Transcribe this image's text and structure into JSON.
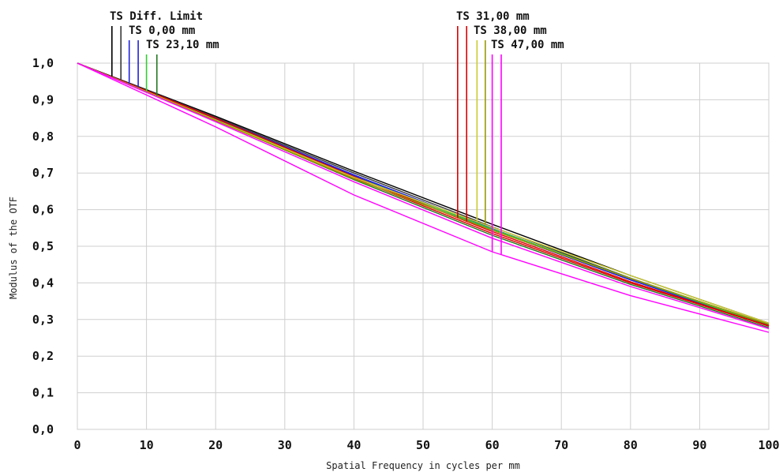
{
  "chart_data": {
    "type": "line",
    "xlabel": "Spatial Frequency in cycles per mm",
    "ylabel": "Modulus of the OTF",
    "xlim": [
      0,
      100
    ],
    "ylim": [
      0,
      1
    ],
    "x_ticks": [
      "0",
      "10",
      "20",
      "30",
      "40",
      "50",
      "60",
      "70",
      "80",
      "90",
      "100"
    ],
    "y_ticks": [
      "0,0",
      "0,1",
      "0,2",
      "0,3",
      "0,4",
      "0,5",
      "0,6",
      "0,7",
      "0,8",
      "0,9",
      "1,0"
    ],
    "grid": true,
    "legend_labels": [
      "TS Diff. Limit",
      "TS 0,00 mm",
      "TS 23,10 mm",
      "TS 31,00 mm",
      "TS 38,00 mm",
      "TS 47,00 mm"
    ],
    "series": [
      {
        "name": "TS Diff. Limit",
        "color": "#000000",
        "marker_x": [
          5.0,
          6.3
        ],
        "x": [
          0,
          20,
          40,
          60,
          80,
          100
        ],
        "y": [
          1.0,
          0.855,
          0.705,
          0.56,
          0.42,
          0.29
        ]
      },
      {
        "color": "#3a3a3a",
        "x": [
          0,
          20,
          40,
          60,
          80,
          100
        ],
        "y": [
          1.0,
          0.852,
          0.7,
          0.553,
          0.413,
          0.285
        ]
      },
      {
        "name": "TS 0,00 mm",
        "color": "#2222dd",
        "marker_x": [
          7.5,
          8.8
        ],
        "x": [
          0,
          20,
          40,
          60,
          80,
          100
        ],
        "y": [
          1.0,
          0.85,
          0.695,
          0.548,
          0.41,
          0.283
        ]
      },
      {
        "color": "#2222dd",
        "x": [
          0,
          20,
          40,
          60,
          80,
          100
        ],
        "y": [
          1.0,
          0.848,
          0.693,
          0.545,
          0.408,
          0.282
        ]
      },
      {
        "name": "TS 23,10 mm",
        "color": "#33cc33",
        "marker_x": [
          10.0,
          11.5
        ],
        "x": [
          0,
          20,
          40,
          60,
          80,
          100
        ],
        "y": [
          1.0,
          0.846,
          0.69,
          0.547,
          0.412,
          0.283
        ]
      },
      {
        "color": "#227722",
        "x": [
          0,
          20,
          40,
          60,
          80,
          100
        ],
        "y": [
          1.0,
          0.844,
          0.682,
          0.53,
          0.396,
          0.278
        ]
      },
      {
        "name": "TS 31,00 mm",
        "color": "#dd0000",
        "marker_x": [
          55.0,
          56.3
        ],
        "x": [
          0,
          20,
          40,
          60,
          80,
          100
        ],
        "y": [
          1.0,
          0.85,
          0.69,
          0.54,
          0.403,
          0.283
        ]
      },
      {
        "color": "#dd0000",
        "x": [
          0,
          20,
          40,
          60,
          80,
          100
        ],
        "y": [
          1.0,
          0.846,
          0.686,
          0.535,
          0.4,
          0.282
        ]
      },
      {
        "name": "TS 38,00 mm",
        "color": "#cccc33",
        "marker_x": [
          57.8,
          59.0
        ],
        "x": [
          0,
          20,
          40,
          60,
          80,
          100
        ],
        "y": [
          1.0,
          0.845,
          0.688,
          0.552,
          0.42,
          0.29
        ]
      },
      {
        "color": "#999900",
        "x": [
          0,
          20,
          40,
          60,
          80,
          100
        ],
        "y": [
          1.0,
          0.843,
          0.684,
          0.544,
          0.412,
          0.287
        ]
      },
      {
        "name": "TS 47,00 mm",
        "color": "#ff00ff",
        "marker_x": [
          60.0,
          61.3
        ],
        "x": [
          0,
          20,
          40,
          60,
          80,
          100
        ],
        "y": [
          1.0,
          0.826,
          0.64,
          0.485,
          0.365,
          0.265
        ]
      },
      {
        "color": "#ff00ff",
        "x": [
          0,
          20,
          40,
          60,
          80,
          100
        ],
        "y": [
          1.0,
          0.84,
          0.676,
          0.522,
          0.39,
          0.275
        ]
      }
    ]
  }
}
